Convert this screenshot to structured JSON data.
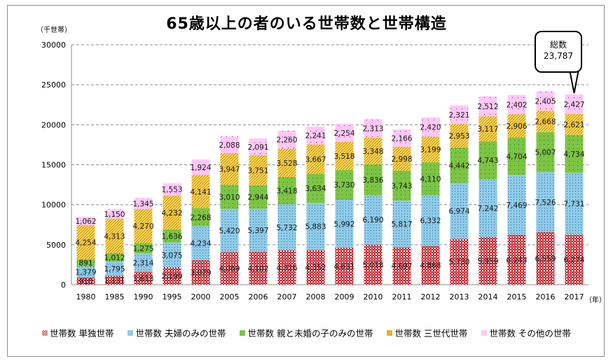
{
  "chart_data": {
    "type": "bar",
    "stacked": true,
    "title": "65歳以上の者のいる世帯数と世帯構造",
    "ylabel": "（千世帯）",
    "xlabel": "（年）",
    "ylim": [
      0,
      30000
    ],
    "yticks": [
      0,
      5000,
      10000,
      15000,
      20000,
      25000,
      30000
    ],
    "grid": true,
    "legend_position": "bottom",
    "categories": [
      "1980",
      "1985",
      "1990",
      "1995",
      "2000",
      "2005",
      "2006",
      "2007",
      "2008",
      "2009",
      "2010",
      "2011",
      "2012",
      "2013",
      "2014",
      "2015",
      "2016",
      "2017"
    ],
    "series": [
      {
        "name": "世帯数 単独世帯",
        "color": "#c0202a",
        "pattern": "checker",
        "values": [
          910,
          1131,
          1613,
          2199,
          3079,
          4069,
          4102,
          4326,
          4352,
          4631,
          5018,
          4697,
          4868,
          5730,
          5959,
          6243,
          6559,
          6274
        ]
      },
      {
        "name": "世帯数 夫婦のみの世帯",
        "color": "#8fcbe8",
        "pattern": "dots",
        "values": [
          1379,
          1795,
          2314,
          3075,
          4234,
          5420,
          5397,
          5732,
          5883,
          5992,
          6190,
          5817,
          6332,
          6974,
          7242,
          7469,
          7526,
          7731
        ]
      },
      {
        "name": "世帯数 親と未婚の子のみの世帯",
        "color": "#7dc444",
        "pattern": "dots",
        "values": [
          891,
          1012,
          1275,
          1636,
          2268,
          3010,
          2944,
          3418,
          3634,
          3730,
          3836,
          3743,
          4110,
          4442,
          4743,
          4704,
          5007,
          4734
        ]
      },
      {
        "name": "世帯数 三世代世帯",
        "color": "#ffd840",
        "pattern": "diagonal",
        "values": [
          4254,
          4313,
          4270,
          4232,
          4141,
          3947,
          3751,
          3528,
          3667,
          3518,
          3348,
          2998,
          3199,
          2953,
          3117,
          2906,
          2668,
          2621
        ]
      },
      {
        "name": "世帯数 その他の世帯",
        "color": "#ffc8f6",
        "pattern": "sparse-dots",
        "values": [
          1062,
          1150,
          1345,
          1553,
          1924,
          2088,
          2091,
          2260,
          2241,
          2254,
          2313,
          2166,
          2420,
          2321,
          2512,
          2402,
          2405,
          2427
        ]
      }
    ],
    "annotations": [
      {
        "target": "2017",
        "label": "総数",
        "value": "23,787"
      }
    ]
  }
}
